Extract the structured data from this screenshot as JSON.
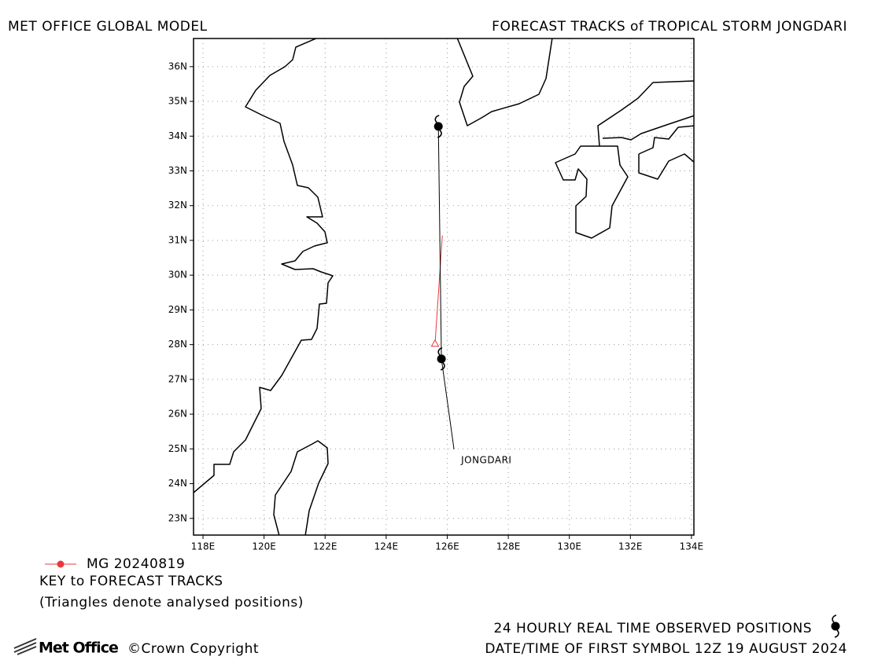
{
  "header": {
    "left": "MET OFFICE GLOBAL MODEL",
    "right": "FORECAST TRACKS of TROPICAL STORM JONGDARI"
  },
  "map": {
    "xlim": [
      117.69,
      134.08
    ],
    "ylim": [
      22.52,
      36.81
    ],
    "xticks": [
      {
        "value": 118,
        "label": "118E"
      },
      {
        "value": 120,
        "label": "120E"
      },
      {
        "value": 122,
        "label": "122E"
      },
      {
        "value": 124,
        "label": "124E"
      },
      {
        "value": 126,
        "label": "126E"
      },
      {
        "value": 128,
        "label": "128E"
      },
      {
        "value": 130,
        "label": "130E"
      },
      {
        "value": 132,
        "label": "132E"
      },
      {
        "value": 134,
        "label": "134E"
      }
    ],
    "yticks": [
      {
        "value": 23,
        "label": "23N"
      },
      {
        "value": 24,
        "label": "24N"
      },
      {
        "value": 25,
        "label": "25N"
      },
      {
        "value": 26,
        "label": "26N"
      },
      {
        "value": 27,
        "label": "27N"
      },
      {
        "value": 28,
        "label": "28N"
      },
      {
        "value": 29,
        "label": "29N"
      },
      {
        "value": 30,
        "label": "30N"
      },
      {
        "value": 31,
        "label": "31N"
      },
      {
        "value": 32,
        "label": "32N"
      },
      {
        "value": 33,
        "label": "33N"
      },
      {
        "value": 34,
        "label": "34N"
      },
      {
        "value": 35,
        "label": "35N"
      },
      {
        "value": 36,
        "label": "36N"
      }
    ],
    "grid": true,
    "storm": {
      "name": "JONGDARI",
      "observed": {
        "color": "#000000",
        "lon": [
          125.81,
          125.71
        ],
        "lat": [
          27.59,
          34.28
        ]
      },
      "forecast": {
        "name": "MG 20240819",
        "color": "#e8383d",
        "lon": [
          125.6,
          125.84
        ],
        "lat": [
          28.02,
          31.14
        ]
      }
    }
  },
  "key": {
    "title": "KEY to FORECAST TRACKS",
    "note": "(Triangles denote analysed positions)"
  },
  "footer": {
    "logo": "Met Office",
    "copyright": "©Crown Copyright",
    "observed": "24 HOURLY REAL TIME OBSERVED POSITIONS",
    "first_symbol": "DATE/TIME OF FIRST SYMBOL 12Z 19 AUGUST 2024"
  }
}
